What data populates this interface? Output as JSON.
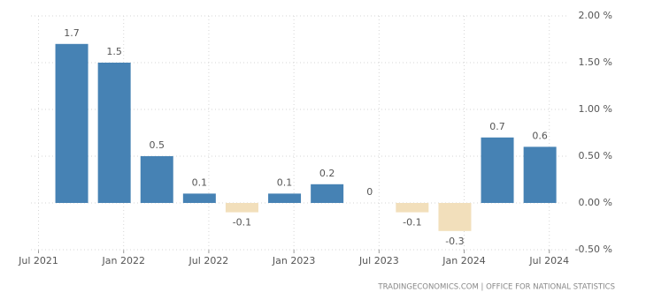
{
  "chart_data": {
    "type": "bar",
    "categories": [
      null,
      null,
      null,
      null,
      null,
      null,
      null,
      null,
      null,
      null,
      null,
      null
    ],
    "values": [
      1.7,
      1.5,
      0.5,
      0.1,
      -0.1,
      0.1,
      0.2,
      0,
      -0.1,
      -0.3,
      0.7,
      0.6
    ],
    "positive_color": "#4682b4",
    "negative_color": "#f2dfbb",
    "xtick_labels": [
      "Jul 2021",
      "Jan 2022",
      "Jul 2022",
      "Jan 2023",
      "Jul 2023",
      "Jan 2024",
      "Jul 2024"
    ],
    "ylim": [
      -0.5,
      2.0
    ],
    "yticks": [
      {
        "value": -0.5,
        "label": "-0.50 %"
      },
      {
        "value": 0,
        "label": "0.00 %"
      },
      {
        "value": 0.5,
        "label": "0.50 %"
      },
      {
        "value": 1,
        "label": "1.00 %"
      },
      {
        "value": 1.5,
        "label": "1.50 %"
      },
      {
        "value": 2,
        "label": "2.00 %"
      }
    ],
    "grid": true,
    "source": "TRADINGECONOMICS.COM  |  OFFICE FOR NATIONAL STATISTICS"
  }
}
